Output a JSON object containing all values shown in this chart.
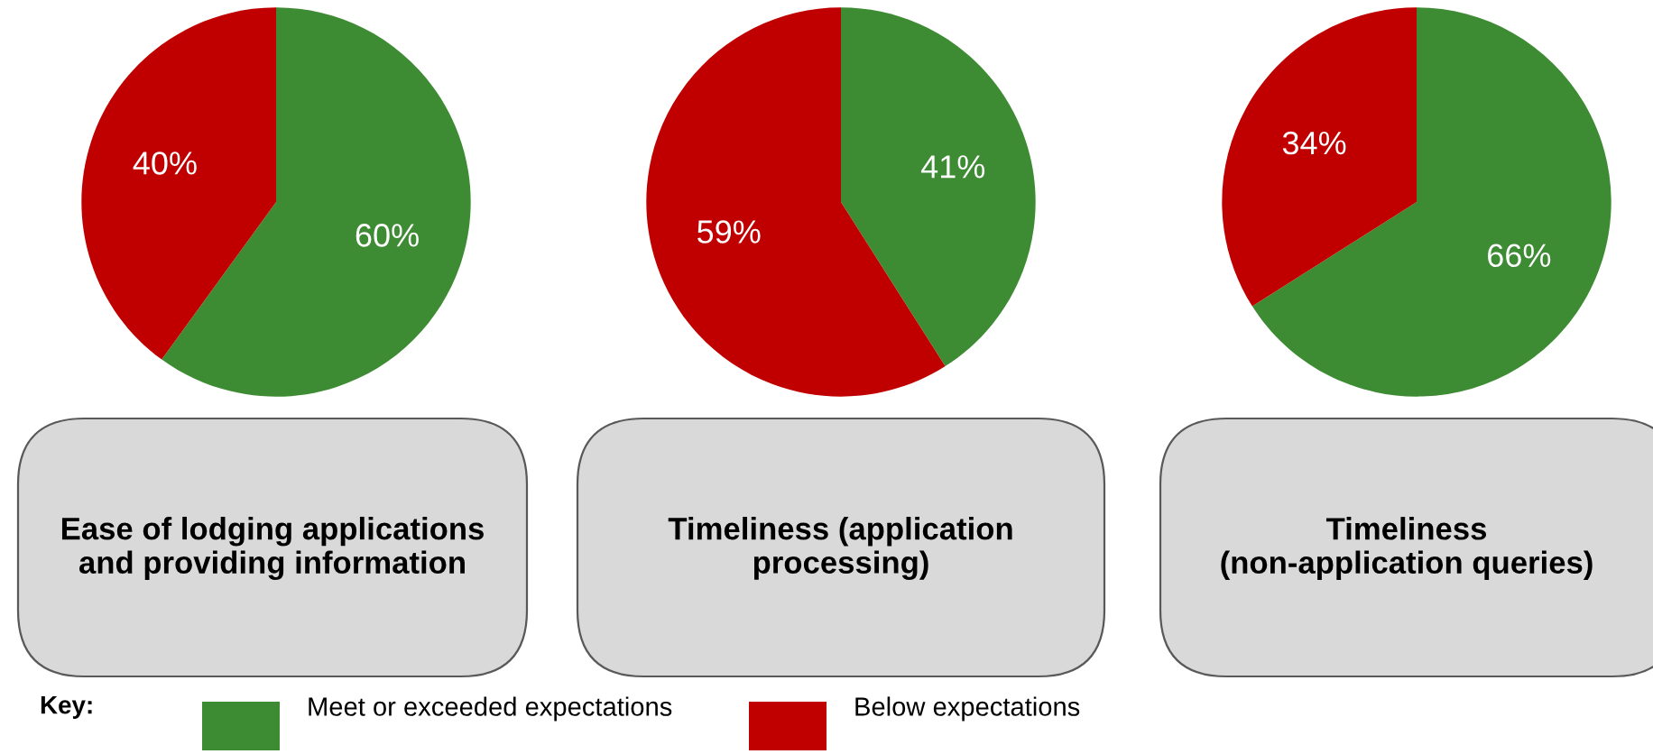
{
  "chart_data": [
    {
      "type": "pie",
      "title": "Ease of lodging applications\nand providing information",
      "categories": [
        "Meet or exceeded expectations",
        "Below expectations"
      ],
      "values": [
        60,
        40
      ],
      "value_labels": [
        "60%",
        "40%"
      ],
      "colors": [
        "#3d8b32",
        "#c00000"
      ],
      "legend": "bottom",
      "legend_title": "Key:"
    },
    {
      "type": "pie",
      "title": "Timeliness (application\nprocessing)",
      "categories": [
        null,
        null
      ],
      "values": [
        41,
        59
      ],
      "value_labels": [
        "41%",
        "59%"
      ],
      "colors": [
        "#3d8b32",
        "#c00000"
      ]
    },
    {
      "type": "pie",
      "title": "Timeliness\n(non-application queries)",
      "categories": [
        null,
        null
      ],
      "values": [
        66,
        34
      ],
      "value_labels": [
        "66%",
        "34%"
      ],
      "colors": [
        "#3d8b32",
        "#c00000"
      ]
    }
  ]
}
